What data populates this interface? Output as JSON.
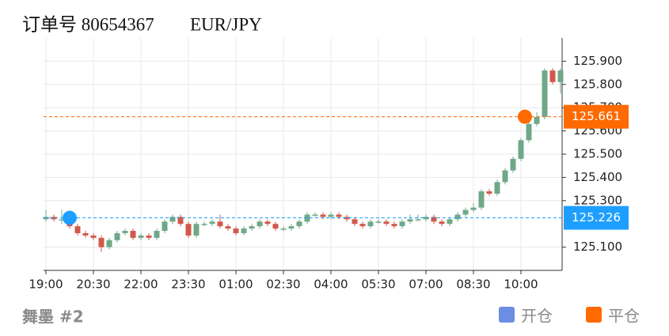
{
  "order_label": "订单号 80654367",
  "symbol": "EUR/JPY",
  "footer": "舞墨 #2",
  "chart_data": {
    "type": "candlestick",
    "categories": [
      "19:00",
      null,
      null,
      null,
      null,
      null,
      "20:30",
      null,
      null,
      null,
      null,
      null,
      "22:00",
      null,
      null,
      null,
      null,
      null,
      "23:30",
      null,
      null,
      null,
      null,
      null,
      "01:00",
      null,
      null,
      null,
      null,
      null,
      "02:30",
      null,
      null,
      null,
      null,
      null,
      "04:00",
      null,
      null,
      null,
      null,
      null,
      "05:30",
      null,
      null,
      null,
      null,
      null,
      "07:00",
      null,
      null,
      null,
      null,
      null,
      "08:30",
      null,
      null,
      null,
      null,
      null,
      "10:00",
      null,
      null,
      null,
      null,
      null
    ],
    "open": [
      125.22,
      125.23,
      125.22,
      125.22,
      125.19,
      125.16,
      125.15,
      125.14,
      125.1,
      125.13,
      125.16,
      125.17,
      125.14,
      125.15,
      125.14,
      125.17,
      125.21,
      125.23,
      125.2,
      125.15,
      125.2,
      125.2,
      125.21,
      125.19,
      125.18,
      125.16,
      125.18,
      125.19,
      125.21,
      125.2,
      125.18,
      125.18,
      125.19,
      125.21,
      125.24,
      125.24,
      125.23,
      125.24,
      125.23,
      125.22,
      125.2,
      125.19,
      125.21,
      125.21,
      125.2,
      125.19,
      125.21,
      125.22,
      125.22,
      125.23,
      125.21,
      125.2,
      125.22,
      125.24,
      125.26,
      125.27,
      125.34,
      125.33,
      125.38,
      125.43,
      125.48,
      125.56,
      125.63,
      125.66,
      125.86,
      125.81
    ],
    "high": [
      125.26,
      125.24,
      125.26,
      125.23,
      125.2,
      125.17,
      125.16,
      125.15,
      125.14,
      125.17,
      125.18,
      125.18,
      125.16,
      125.16,
      125.18,
      125.22,
      125.24,
      125.24,
      125.21,
      125.21,
      125.21,
      125.22,
      125.24,
      125.2,
      125.19,
      125.19,
      125.2,
      125.22,
      125.22,
      125.21,
      125.19,
      125.2,
      125.22,
      125.25,
      125.25,
      125.25,
      125.25,
      125.25,
      125.24,
      125.23,
      125.21,
      125.22,
      125.22,
      125.22,
      125.21,
      125.22,
      125.24,
      125.24,
      125.24,
      125.24,
      125.22,
      125.23,
      125.25,
      125.27,
      125.29,
      125.35,
      125.35,
      125.39,
      125.44,
      125.49,
      125.57,
      125.64,
      125.68,
      125.87,
      125.87,
      125.87
    ],
    "low": [
      125.21,
      125.21,
      125.2,
      125.18,
      125.15,
      125.14,
      125.13,
      125.08,
      125.09,
      125.12,
      125.15,
      125.13,
      125.13,
      125.13,
      125.13,
      125.16,
      125.2,
      125.19,
      125.14,
      125.14,
      125.19,
      125.19,
      125.18,
      125.17,
      125.15,
      125.15,
      125.17,
      125.18,
      125.19,
      125.17,
      125.17,
      125.17,
      125.18,
      125.2,
      125.23,
      125.22,
      125.22,
      125.22,
      125.21,
      125.19,
      125.18,
      125.18,
      125.2,
      125.19,
      125.18,
      125.18,
      125.2,
      125.21,
      125.21,
      125.2,
      125.19,
      125.19,
      125.21,
      125.23,
      125.25,
      125.26,
      125.32,
      125.32,
      125.37,
      125.42,
      125.47,
      125.55,
      125.62,
      125.65,
      125.8,
      125.76
    ],
    "close": [
      125.23,
      125.22,
      125.22,
      125.19,
      125.16,
      125.15,
      125.14,
      125.1,
      125.13,
      125.16,
      125.17,
      125.14,
      125.15,
      125.14,
      125.17,
      125.21,
      125.23,
      125.2,
      125.15,
      125.2,
      125.2,
      125.21,
      125.19,
      125.18,
      125.16,
      125.18,
      125.19,
      125.21,
      125.2,
      125.18,
      125.18,
      125.19,
      125.21,
      125.24,
      125.24,
      125.23,
      125.24,
      125.23,
      125.22,
      125.2,
      125.19,
      125.21,
      125.21,
      125.2,
      125.19,
      125.21,
      125.22,
      125.22,
      125.23,
      125.21,
      125.2,
      125.22,
      125.24,
      125.26,
      125.27,
      125.34,
      125.33,
      125.38,
      125.43,
      125.48,
      125.56,
      125.63,
      125.66,
      125.86,
      125.81,
      125.86
    ],
    "up_color": "#6fa888",
    "down_color": "#d2584a",
    "ylim": [
      125.0,
      126.0
    ],
    "yticks": [
      {
        "value": 125.1,
        "label": "125.100"
      },
      {
        "value": 125.3,
        "label": "125.300"
      },
      {
        "value": 125.4,
        "label": "125.400"
      },
      {
        "value": 125.5,
        "label": "125.500"
      },
      {
        "value": 125.6,
        "label": "125.600"
      },
      {
        "value": 125.7,
        "label": "125.700"
      },
      {
        "value": 125.8,
        "label": "125.800"
      },
      {
        "value": 125.9,
        "label": "125.900"
      }
    ],
    "grid": true,
    "levels": [
      {
        "name": "开仓",
        "value": 125.226,
        "label": "125.226",
        "x": 3,
        "color": "#1e9fff",
        "legend_color": "#6b8de3"
      },
      {
        "name": "平仓",
        "value": 125.661,
        "label": "125.661",
        "x": 60.5,
        "color": "#ff6a00",
        "legend_color": "#ff6a00"
      }
    ]
  }
}
